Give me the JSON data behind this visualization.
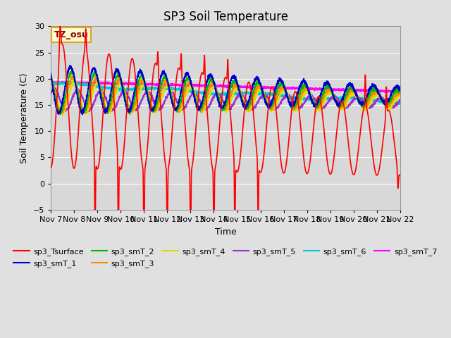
{
  "title": "SP3 Soil Temperature",
  "ylabel": "Soil Temperature (C)",
  "xlabel": "Time",
  "ylim": [
    -5,
    30
  ],
  "yticks": [
    -5,
    0,
    5,
    10,
    15,
    20,
    25,
    30
  ],
  "xtick_labels": [
    "Nov 7",
    "Nov 8",
    "Nov 9",
    "Nov 10",
    "Nov 11",
    "Nov 12",
    "Nov 13",
    "Nov 14",
    "Nov 15",
    "Nov 16",
    "Nov 17",
    "Nov 18",
    "Nov 19",
    "Nov 20",
    "Nov 21",
    "Nov 22"
  ],
  "annotation_text": "TZ_osu",
  "annotation_color": "#8B0000",
  "annotation_bg": "#FFFACD",
  "annotation_border": "#DAA520",
  "series_colors": {
    "sp3_Tsurface": "#FF0000",
    "sp3_smT_1": "#0000CC",
    "sp3_smT_2": "#00BB00",
    "sp3_smT_3": "#FF8800",
    "sp3_smT_4": "#DDDD00",
    "sp3_smT_5": "#9933CC",
    "sp3_smT_6": "#00CCCC",
    "sp3_smT_7": "#FF00FF"
  },
  "bg_color": "#E0E0E0",
  "plot_bg_color": "#D8D8D8",
  "grid_color": "#FFFFFF",
  "title_fontsize": 12,
  "label_fontsize": 9,
  "tick_fontsize": 8
}
